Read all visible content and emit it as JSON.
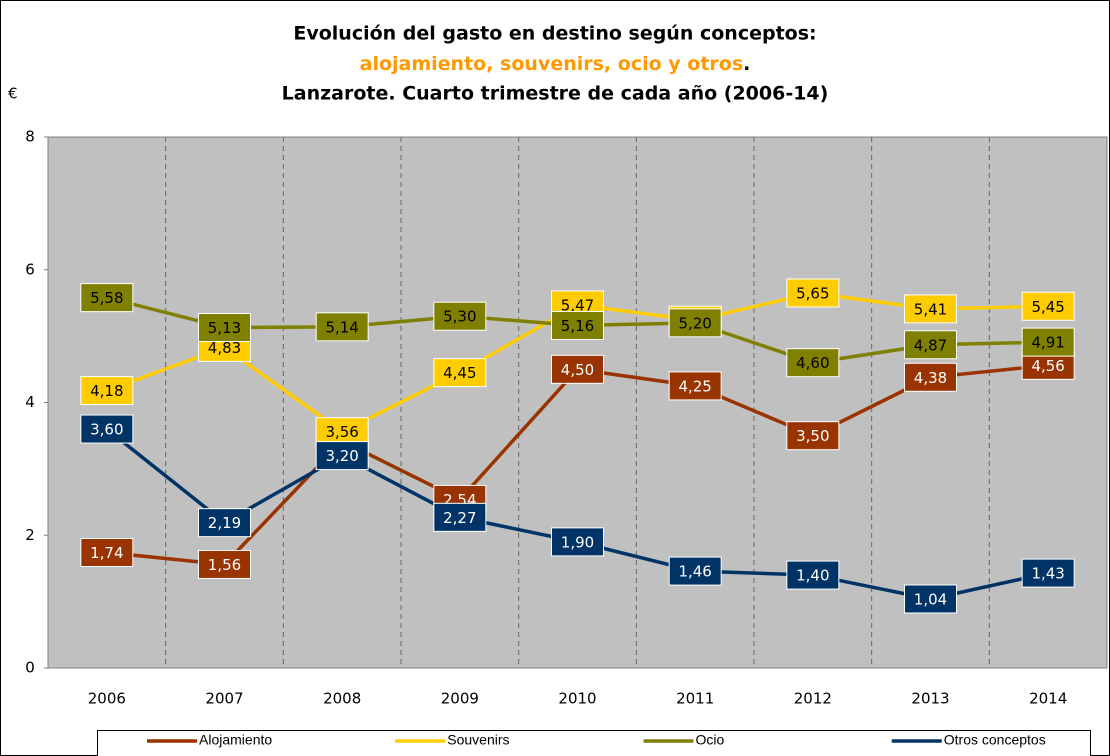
{
  "chart_data": {
    "type": "line",
    "title": "Evolución del gasto en destino según conceptos:",
    "subtitle": "alojamiento, souvenirs, ocio y otros.",
    "subtitle2": "Lanzarote. Cuarto trimestre de cada año (2006-14)",
    "y_label": "€",
    "categories": [
      "2006",
      "2007",
      "2008",
      "2009",
      "2010",
      "2011",
      "2012",
      "2013",
      "2014"
    ],
    "ylim": [
      0,
      8
    ],
    "yticks": [
      0,
      2,
      4,
      6,
      8
    ],
    "series": [
      {
        "name": "Alojamiento",
        "color": "#993300",
        "values": [
          1.74,
          1.56,
          3.42,
          2.54,
          4.5,
          4.25,
          3.5,
          4.38,
          4.56
        ],
        "value_labels": [
          "1,74",
          "1,56",
          "3,42",
          "2,54",
          "4,50",
          "4,25",
          "3,50",
          "4,38",
          "4,56"
        ]
      },
      {
        "name": "Souvenirs",
        "color": "#FFCC00",
        "values": [
          4.18,
          4.83,
          3.56,
          4.45,
          5.47,
          5.24,
          5.65,
          5.41,
          5.45
        ],
        "value_labels": [
          "4,18",
          "4,83",
          "3,56",
          "4,45",
          "5,47",
          "5,24",
          "5,65",
          "5,41",
          "5,45"
        ]
      },
      {
        "name": "Ocio",
        "color": "#808000",
        "values": [
          5.58,
          5.13,
          5.14,
          5.3,
          5.16,
          5.2,
          4.6,
          4.87,
          4.91
        ],
        "value_labels": [
          "5,58",
          "5,13",
          "5,14",
          "5,30",
          "5,16",
          "5,20",
          "4,60",
          "4,87",
          "4,91"
        ]
      },
      {
        "name": "Otros conceptos",
        "color": "#003366",
        "values": [
          3.6,
          2.19,
          3.2,
          2.27,
          1.9,
          1.46,
          1.4,
          1.04,
          1.43
        ],
        "value_labels": [
          "3,60",
          "2,19",
          "3,20",
          "2,27",
          "1,90",
          "1,46",
          "1,40",
          "1,04",
          "1,43"
        ]
      }
    ]
  }
}
